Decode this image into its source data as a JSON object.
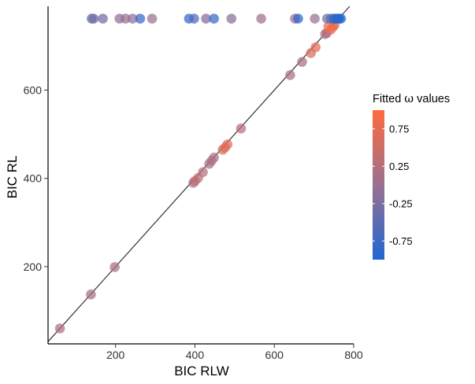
{
  "chart_data": {
    "type": "scatter",
    "title": "",
    "xlabel": "BIC RLW",
    "ylabel": "BIC RL",
    "xlim": [
      30,
      800
    ],
    "ylim": [
      25,
      790
    ],
    "x_ticks": [
      200,
      400,
      600,
      800
    ],
    "y_ticks": [
      200,
      400,
      600
    ],
    "grid": false,
    "reference_line": "y = x",
    "legend": {
      "title_prefix": "Fitted ",
      "title_symbol": "ω",
      "title_suffix": " values",
      "placement": "right",
      "range": [
        -1,
        1
      ],
      "ticks": [
        0.75,
        0.25,
        -0.25,
        -0.75
      ],
      "tick_labels": [
        "0.75",
        "0.25",
        "-0.25",
        "-0.75"
      ],
      "colors": {
        "low": "#1f66d2",
        "mid": "#9b7090",
        "high": "#ff6a3d"
      }
    },
    "points": [
      {
        "x": 60,
        "y": 60,
        "omega": 0.2
      },
      {
        "x": 138,
        "y": 137,
        "omega": 0.1
      },
      {
        "x": 198,
        "y": 199,
        "omega": 0.15
      },
      {
        "x": 396,
        "y": 390,
        "omega": 0.2
      },
      {
        "x": 400,
        "y": 394,
        "omega": 0.3
      },
      {
        "x": 408,
        "y": 401,
        "omega": 0.35
      },
      {
        "x": 420,
        "y": 414,
        "omega": 0.3
      },
      {
        "x": 436,
        "y": 433,
        "omega": 0.1
      },
      {
        "x": 442,
        "y": 440,
        "omega": 0.2
      },
      {
        "x": 448,
        "y": 447,
        "omega": 0.15
      },
      {
        "x": 470,
        "y": 465,
        "omega": 0.6
      },
      {
        "x": 476,
        "y": 470,
        "omega": 0.7
      },
      {
        "x": 482,
        "y": 477,
        "omega": 0.65
      },
      {
        "x": 516,
        "y": 513,
        "omega": 0.3
      },
      {
        "x": 640,
        "y": 634,
        "omega": 0.1
      },
      {
        "x": 670,
        "y": 664,
        "omega": 0.15
      },
      {
        "x": 692,
        "y": 684,
        "omega": 0.6
      },
      {
        "x": 704,
        "y": 697,
        "omega": 0.7
      },
      {
        "x": 728,
        "y": 727,
        "omega": 0.3
      },
      {
        "x": 732,
        "y": 729,
        "omega": 0.1
      },
      {
        "x": 742,
        "y": 737,
        "omega": 0.8
      },
      {
        "x": 748,
        "y": 743,
        "omega": 0.85
      },
      {
        "x": 752,
        "y": 748,
        "omega": 0.7
      },
      {
        "x": 736,
        "y": 744,
        "omega": 0.9
      },
      {
        "x": 140,
        "y": 762,
        "omega": -0.5
      },
      {
        "x": 145,
        "y": 762,
        "omega": -0.3
      },
      {
        "x": 168,
        "y": 762,
        "omega": -0.35
      },
      {
        "x": 210,
        "y": 762,
        "omega": -0.1
      },
      {
        "x": 225,
        "y": 762,
        "omega": -0.05
      },
      {
        "x": 243,
        "y": 762,
        "omega": -0.1
      },
      {
        "x": 262,
        "y": 762,
        "omega": -0.8
      },
      {
        "x": 292,
        "y": 762,
        "omega": 0.0
      },
      {
        "x": 385,
        "y": 762,
        "omega": -0.85
      },
      {
        "x": 398,
        "y": 762,
        "omega": -0.6
      },
      {
        "x": 428,
        "y": 762,
        "omega": -0.2
      },
      {
        "x": 448,
        "y": 762,
        "omega": -0.8
      },
      {
        "x": 492,
        "y": 762,
        "omega": -0.15
      },
      {
        "x": 567,
        "y": 762,
        "omega": 0.05
      },
      {
        "x": 652,
        "y": 762,
        "omega": 0.0
      },
      {
        "x": 660,
        "y": 762,
        "omega": -0.9
      },
      {
        "x": 702,
        "y": 762,
        "omega": 0.0
      },
      {
        "x": 733,
        "y": 762,
        "omega": -0.3
      },
      {
        "x": 742,
        "y": 762,
        "omega": -0.5
      },
      {
        "x": 750,
        "y": 762,
        "omega": -0.85
      },
      {
        "x": 756,
        "y": 762,
        "omega": -0.95
      },
      {
        "x": 760,
        "y": 762,
        "omega": -0.9
      },
      {
        "x": 764,
        "y": 762,
        "omega": -0.85
      },
      {
        "x": 768,
        "y": 762,
        "omega": -1.0
      }
    ]
  }
}
